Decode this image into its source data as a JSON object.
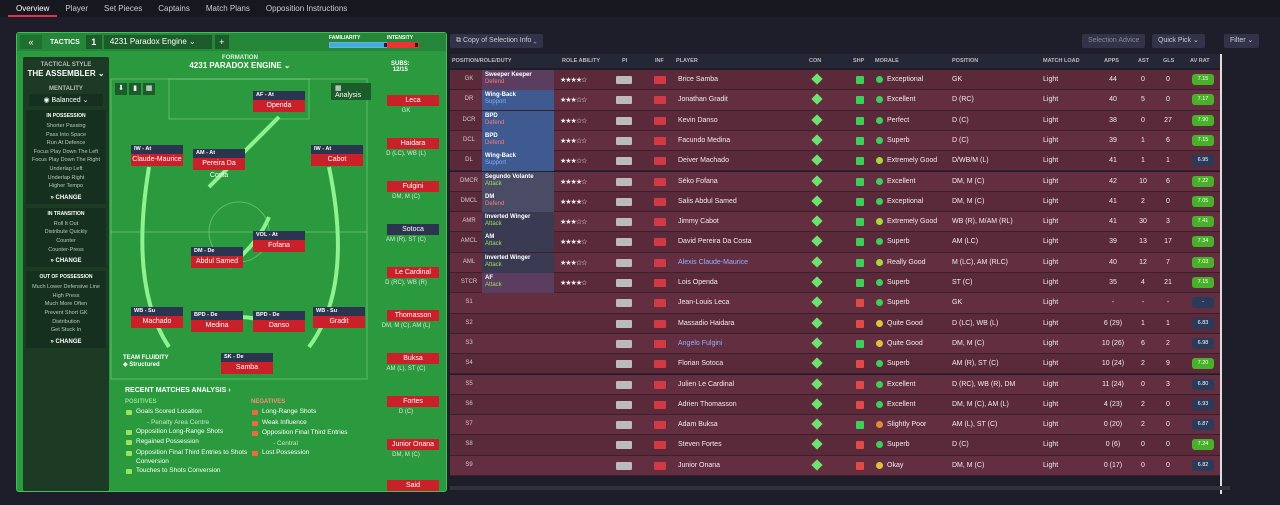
{
  "nav": [
    "Overview",
    "Player",
    "Set Pieces",
    "Captains",
    "Match Plans",
    "Opposition Instructions"
  ],
  "tactics": {
    "label": "TACTICS",
    "number": "1",
    "name": "4231 Paradox Engine",
    "familiarity": "FAMILIARITY",
    "intensity": "INTENSITY",
    "familiarity_level": 0.9,
    "intensity_level": 0.9
  },
  "style": {
    "h": "TACTICAL STYLE",
    "v": "THE ASSEMBLER",
    "mh": "MENTALITY",
    "mv": "Balanced"
  },
  "boxes": [
    {
      "t": "IN POSSESSION",
      "items": [
        "Shorter Passing",
        "Pass Into Space",
        "Run At Defence",
        "Focus Play Down The Left",
        "Focus Play Down The Right",
        "Underlap Left",
        "Underlap Right",
        "Higher Tempo"
      ],
      "ch": "CHANGE"
    },
    {
      "t": "IN TRANSITION",
      "items": [
        "Roll It Out",
        "Distribute Quickly",
        "Counter",
        "Counter-Press"
      ],
      "ch": "CHANGE"
    },
    {
      "t": "OUT OF POSSESSION",
      "items": [
        "Much Lower Defensive Line",
        "High Press",
        "Much More Often",
        "Prevent Short GK",
        "Distribution",
        "Get Stuck In"
      ],
      "ch": "CHANGE"
    }
  ],
  "formation": {
    "a": "FORMATION",
    "b": "4231 PARADOX ENGINE",
    "subs_label": "SUBS:",
    "subs": "12/15",
    "analysis": "Analysis"
  },
  "players": [
    {
      "r": "AF - At",
      "n": "Openda"
    },
    {
      "r": "IW - At",
      "n": "Claude-Maurice"
    },
    {
      "r": "AM - At",
      "n": "Pereira Da Costa"
    },
    {
      "r": "IW - At",
      "n": "Cabot"
    },
    {
      "r": "DM - De",
      "n": "Abdul Samed"
    },
    {
      "r": "VOL - At",
      "n": "Fofana"
    },
    {
      "r": "WB - Su",
      "n": "Machado"
    },
    {
      "r": "BPD - De",
      "n": "Medina"
    },
    {
      "r": "BPD - De",
      "n": "Danso"
    },
    {
      "r": "WB - Su",
      "n": "Gradit"
    },
    {
      "r": "SK - De",
      "n": "Samba"
    }
  ],
  "subs": [
    {
      "n": "Leca",
      "p": "GK"
    },
    {
      "n": "Haidara",
      "p": "D (LC), WB (L)"
    },
    {
      "n": "Fulgini",
      "p": "DM, M (C)"
    },
    {
      "n": "Sotoca",
      "p": "AM (R), ST (C)"
    },
    {
      "n": "Le Cardinal",
      "p": "D (RC), WB (R)"
    },
    {
      "n": "Thomasson",
      "p": "DM, M (C), AM (L)"
    },
    {
      "n": "Buksa",
      "p": "AM (L), ST (C)"
    },
    {
      "n": "Fortes",
      "p": "D (C)"
    },
    {
      "n": "Junior Onana",
      "p": "DM, M (C)"
    },
    {
      "n": "Said",
      "p": ""
    }
  ],
  "team_fluidity": {
    "l": "TEAM FLUIDITY",
    "v": "Structured"
  },
  "recent": "RECENT MATCHES ANALYSIS",
  "positives": {
    "h": "POSITIVES",
    "items": [
      "Goals Scored Location",
      "Opposition Long-Range Shots",
      "Regained Possession",
      "Opposition Final Third Entries to Shots Conversion",
      "Touches to Shots Conversion"
    ],
    "sub0": "- Penalty Area Centre"
  },
  "negatives": {
    "h": "NEGATIVES",
    "items": [
      "Long-Range Shots",
      "Weak Influence",
      "Opposition Final Third Entries",
      "Lost Possession"
    ],
    "sub2": "- Central"
  },
  "toolbar": {
    "copy": "Copy of Selection Info",
    "advice": "Selection Advice",
    "quick": "Quick Pick",
    "filter": "Filter"
  },
  "headers": [
    "POSITION/ROLE/DUTY",
    "ROLE ABILITY",
    "PI",
    "INF",
    "PLAYER",
    "CON",
    "SHP",
    "MORALE",
    "POSITION",
    "MATCH LOAD",
    "APPS",
    "AST",
    "GLS",
    "AV RAT"
  ],
  "rows": [
    {
      "ps": "GK",
      "role": "Sweeper Keeper",
      "duty": "Defend",
      "st": "★★★★☆",
      "p": "Brice Samba",
      "mo": "Exceptional",
      "pos": "GK",
      "ml": "Light",
      "apps": "44",
      "ast": "0",
      "gls": "0",
      "av": "7.15"
    },
    {
      "ps": "DR",
      "role": "Wing-Back",
      "duty": "Support",
      "st": "★★★☆☆",
      "p": "Jonathan Gradit",
      "mo": "Excellent",
      "pos": "D (RC)",
      "ml": "Light",
      "apps": "40",
      "ast": "5",
      "gls": "0",
      "av": "7.17"
    },
    {
      "ps": "DCR",
      "role": "BPD",
      "duty": "Defend",
      "st": "★★★☆☆",
      "p": "Kevin Danso",
      "mo": "Perfect",
      "pos": "D (C)",
      "ml": "Light",
      "apps": "38",
      "ast": "0",
      "gls": "27",
      "av": "7.90"
    },
    {
      "ps": "DCL",
      "role": "BPD",
      "duty": "Defend",
      "st": "★★★☆☆",
      "p": "Facundo Medina",
      "mo": "Superb",
      "pos": "D (C)",
      "ml": "Light",
      "apps": "39",
      "ast": "1",
      "gls": "6",
      "av": "7.15"
    },
    {
      "ps": "DL",
      "role": "Wing-Back",
      "duty": "Support",
      "st": "★★★☆☆",
      "p": "Deiver Machado",
      "mo": "Extremely Good",
      "pos": "D/WB/M (L)",
      "ml": "Light",
      "apps": "41",
      "ast": "1",
      "gls": "1",
      "av": "6.95"
    },
    {
      "ps": "DMCR",
      "role": "Segundo Volante",
      "duty": "Attack",
      "st": "★★★★☆",
      "p": "Séko Fofana",
      "mo": "Excellent",
      "pos": "DM, M (C)",
      "ml": "Light",
      "apps": "42",
      "ast": "10",
      "gls": "6",
      "av": "7.22"
    },
    {
      "ps": "DMCL",
      "role": "DM",
      "duty": "Defend",
      "st": "★★★★☆",
      "p": "Salis Abdul Samed",
      "mo": "Exceptional",
      "pos": "DM, M (C)",
      "ml": "Light",
      "apps": "41",
      "ast": "2",
      "gls": "0",
      "av": "7.05"
    },
    {
      "ps": "AMR",
      "role": "Inverted Winger",
      "duty": "Attack",
      "st": "★★★☆☆",
      "p": "Jimmy Cabot",
      "mo": "Extremely Good",
      "pos": "WB (R), M/AM (RL)",
      "ml": "Light",
      "apps": "41",
      "ast": "30",
      "gls": "3",
      "av": "7.41"
    },
    {
      "ps": "AMCL",
      "role": "AM",
      "duty": "Attack",
      "st": "★★★★☆",
      "p": "David Pereira Da Costa",
      "mo": "Superb",
      "pos": "AM (LC)",
      "ml": "Light",
      "apps": "39",
      "ast": "13",
      "gls": "17",
      "av": "7.34"
    },
    {
      "ps": "AML",
      "role": "Inverted Winger",
      "duty": "Attack",
      "st": "★★★☆☆",
      "p": "Alexis Claude-Maurice",
      "mo": "Really Good",
      "pos": "M (LC), AM (RLC)",
      "ml": "Light",
      "apps": "40",
      "ast": "12",
      "gls": "7",
      "av": "7.03"
    },
    {
      "ps": "STCR",
      "role": "AF",
      "duty": "Attack",
      "st": "★★★★☆",
      "p": "Lois Openda",
      "mo": "Superb",
      "pos": "ST (C)",
      "ml": "Light",
      "apps": "35",
      "ast": "4",
      "gls": "21",
      "av": "7.15"
    },
    {
      "ps": "S1",
      "role": "",
      "duty": "",
      "st": "",
      "p": "Jean-Louis Leca",
      "mo": "Superb",
      "pos": "GK",
      "ml": "Light",
      "apps": "-",
      "ast": "-",
      "gls": "-",
      "av": "-"
    },
    {
      "ps": "S2",
      "role": "",
      "duty": "",
      "st": "",
      "p": "Massadio Haidara",
      "mo": "Quite Good",
      "pos": "D (LC), WB (L)",
      "ml": "Light",
      "apps": "6 (29)",
      "ast": "1",
      "gls": "1",
      "av": "6.83"
    },
    {
      "ps": "S3",
      "role": "",
      "duty": "",
      "st": "",
      "p": "Angelo Fulgini",
      "mo": "Quite Good",
      "pos": "DM, M (C)",
      "ml": "Light",
      "apps": "10 (26)",
      "ast": "6",
      "gls": "2",
      "av": "6.98"
    },
    {
      "ps": "S4",
      "role": "",
      "duty": "",
      "st": "",
      "p": "Florian Sotoca",
      "mo": "Superb",
      "pos": "AM (R), ST (C)",
      "ml": "Light",
      "apps": "10 (24)",
      "ast": "2",
      "gls": "9",
      "av": "7.20"
    },
    {
      "ps": "S5",
      "role": "",
      "duty": "",
      "st": "",
      "p": "Julien Le Cardinal",
      "mo": "Excellent",
      "pos": "D (RC), WB (R), DM",
      "ml": "Light",
      "apps": "11 (24)",
      "ast": "0",
      "gls": "3",
      "av": "6.80"
    },
    {
      "ps": "S6",
      "role": "",
      "duty": "",
      "st": "",
      "p": "Adrien Thomasson",
      "mo": "Excellent",
      "pos": "DM, M (C), AM (L)",
      "ml": "Light",
      "apps": "4 (23)",
      "ast": "2",
      "gls": "0",
      "av": "6.93"
    },
    {
      "ps": "S7",
      "role": "",
      "duty": "",
      "st": "",
      "p": "Adam Buksa",
      "mo": "Slightly Poor",
      "pos": "AM (L), ST (C)",
      "ml": "Light",
      "apps": "0 (20)",
      "ast": "2",
      "gls": "0",
      "av": "6.87"
    },
    {
      "ps": "S8",
      "role": "",
      "duty": "",
      "st": "",
      "p": "Steven Fortes",
      "mo": "Superb",
      "pos": "D (C)",
      "ml": "Light",
      "apps": "0 (6)",
      "ast": "0",
      "gls": "0",
      "av": "7.24"
    },
    {
      "ps": "S9",
      "role": "",
      "duty": "",
      "st": "",
      "p": "Junior Onana",
      "mo": "Okay",
      "pos": "DM, M (C)",
      "ml": "Light",
      "apps": "0 (17)",
      "ast": "0",
      "gls": "0",
      "av": "6.82"
    }
  ]
}
